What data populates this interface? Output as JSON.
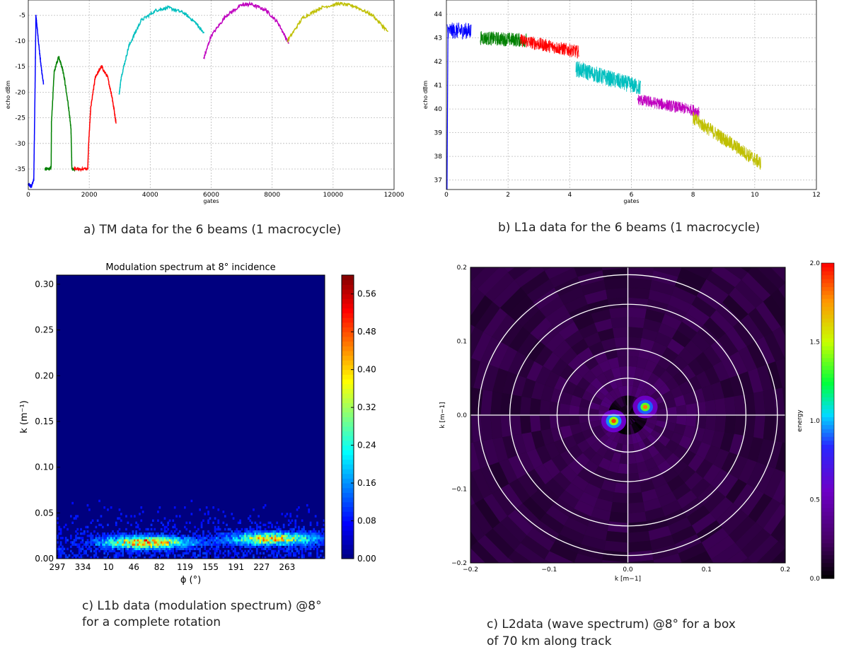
{
  "captions": {
    "a": "a) TM data for the 6 beams (1 macrocycle)",
    "b": "b) L1a data for the 6 beams (1 macrocycle)",
    "c1_line1": "c) L1b data (modulation spectrum) @8°",
    "c1_line2": "for  a complete rotation",
    "c2_line1": "c) L2data (wave spectrum) @8° for  a box",
    "c2_line2": "of 70 km along track"
  },
  "chart_data": [
    {
      "id": "a",
      "type": "line",
      "xlabel": "gates",
      "ylabel": "echo dBm",
      "xlim": [
        0,
        12000
      ],
      "ylim": [
        -39,
        -2
      ],
      "xticks": [
        "0",
        "2000",
        "4000",
        "6000",
        "8000",
        "10000",
        "12000"
      ],
      "yticks": [
        "-35",
        "-30",
        "-25",
        "-20",
        "-15",
        "-10",
        "-5"
      ],
      "grid": true,
      "series": [
        {
          "color": "#0000ff",
          "points": [
            [
              0,
              -38
            ],
            [
              100,
              -38.5
            ],
            [
              180,
              -37
            ],
            [
              220,
              -20
            ],
            [
              250,
              -5
            ],
            [
              300,
              -8
            ],
            [
              400,
              -14
            ],
            [
              500,
              -18.5
            ]
          ]
        },
        {
          "color": "#008000",
          "points": [
            [
              550,
              -35
            ],
            [
              700,
              -35
            ],
            [
              750,
              -34.5
            ],
            [
              760,
              -26
            ],
            [
              850,
              -16
            ],
            [
              1000,
              -13
            ],
            [
              1150,
              -16
            ],
            [
              1300,
              -22
            ],
            [
              1400,
              -27
            ],
            [
              1430,
              -35
            ],
            [
              1550,
              -35
            ]
          ]
        },
        {
          "color": "#ff0000",
          "points": [
            [
              1500,
              -35
            ],
            [
              1950,
              -35
            ],
            [
              1980,
              -30
            ],
            [
              2050,
              -23
            ],
            [
              2200,
              -17
            ],
            [
              2400,
              -15
            ],
            [
              2600,
              -17
            ],
            [
              2750,
              -21
            ],
            [
              2880,
              -26
            ]
          ]
        },
        {
          "color": "#00bfbf",
          "points": [
            [
              2980,
              -20.5
            ],
            [
              3050,
              -17
            ],
            [
              3300,
              -11
            ],
            [
              3700,
              -6
            ],
            [
              4200,
              -4
            ],
            [
              4600,
              -3.5
            ],
            [
              5100,
              -4.5
            ],
            [
              5500,
              -6.5
            ],
            [
              5760,
              -8.5
            ]
          ]
        },
        {
          "color": "#bf00bf",
          "points": [
            [
              5750,
              -13.5
            ],
            [
              6000,
              -9
            ],
            [
              6500,
              -5
            ],
            [
              7000,
              -3
            ],
            [
              7300,
              -2.8
            ],
            [
              7800,
              -4
            ],
            [
              8200,
              -6.5
            ],
            [
              8550,
              -10.5
            ]
          ]
        },
        {
          "color": "#bfbf00",
          "points": [
            [
              8500,
              -10
            ],
            [
              9000,
              -5.5
            ],
            [
              9600,
              -3.5
            ],
            [
              10200,
              -2.7
            ],
            [
              10700,
              -3.2
            ],
            [
              11300,
              -5
            ],
            [
              11800,
              -8.2
            ]
          ]
        }
      ]
    },
    {
      "id": "b",
      "type": "line",
      "xlabel": "gates",
      "ylabel": "echo dBm",
      "xlim": [
        0,
        12
      ],
      "ylim": [
        36.6,
        44.6
      ],
      "xticks": [
        "0",
        "2",
        "4",
        "6",
        "8",
        "10",
        "12"
      ],
      "yticks": [
        "37",
        "38",
        "39",
        "40",
        "41",
        "42",
        "43",
        "44"
      ],
      "grid": true,
      "series": [
        {
          "color": "#0000ff",
          "x0": 0.02,
          "x1": 0.8,
          "y0": 43.3,
          "y1": 43.3,
          "noise": 0.35
        },
        {
          "color": "#008000",
          "x0": 1.1,
          "x1": 2.6,
          "y0": 43.0,
          "y1": 42.9,
          "noise": 0.3
        },
        {
          "color": "#ff0000",
          "x0": 2.4,
          "x1": 4.3,
          "y0": 42.9,
          "y1": 42.4,
          "noise": 0.28
        },
        {
          "color": "#00bfbf",
          "x0": 4.2,
          "x1": 6.3,
          "y0": 41.7,
          "y1": 40.9,
          "noise": 0.35
        },
        {
          "color": "#bf00bf",
          "x0": 6.2,
          "x1": 8.2,
          "y0": 40.4,
          "y1": 39.9,
          "noise": 0.25
        },
        {
          "color": "#bfbf00",
          "x0": 8.0,
          "x1": 10.2,
          "y0": 39.6,
          "y1": 37.7,
          "noise": 0.3
        }
      ]
    },
    {
      "id": "c1",
      "type": "heatmap",
      "title": "Modulation spectrum at 8° incidence",
      "xlabel": "ϕ (°)",
      "ylabel": "k (m⁻¹)",
      "xticks": [
        "297",
        "334",
        "10",
        "46",
        "82",
        "119",
        "155",
        "191",
        "227",
        "263"
      ],
      "yticks": [
        "0.00",
        "0.05",
        "0.10",
        "0.15",
        "0.20",
        "0.25",
        "0.30"
      ],
      "ylim": [
        0,
        0.31
      ],
      "colorbar_ticks": [
        "0.00",
        "0.08",
        "0.16",
        "0.24",
        "0.32",
        "0.40",
        "0.48",
        "0.56"
      ],
      "colorbar_range": [
        0,
        0.6
      ],
      "peaks": [
        {
          "phi_index": 3.4,
          "k": 0.018,
          "value": 0.45
        },
        {
          "phi_index": 8.4,
          "k": 0.022,
          "value": 0.4
        }
      ]
    },
    {
      "id": "c2",
      "type": "heatmap",
      "xlabel": "k [m−1]",
      "ylabel": "k [m−1]",
      "xlim": [
        -0.2,
        0.2
      ],
      "ylim": [
        -0.2,
        0.2
      ],
      "xticks": [
        "−0.2",
        "−0.1",
        "0.0",
        "0.1",
        "0.2"
      ],
      "yticks": [
        "−0.2",
        "−0.1",
        "0.0",
        "0.1",
        "0.2"
      ],
      "colorbar_label": "energy",
      "colorbar_ticks": [
        "0.0",
        "0.5",
        "1.0",
        "1.5",
        "2.0"
      ],
      "colorbar_range": [
        0,
        2.0
      ],
      "ring_radii": [
        0.05,
        0.09,
        0.15,
        0.19
      ],
      "peaks": [
        {
          "kx": -0.018,
          "ky": -0.008,
          "value": 1.9
        },
        {
          "kx": 0.022,
          "ky": 0.011,
          "value": 1.8
        }
      ]
    }
  ]
}
